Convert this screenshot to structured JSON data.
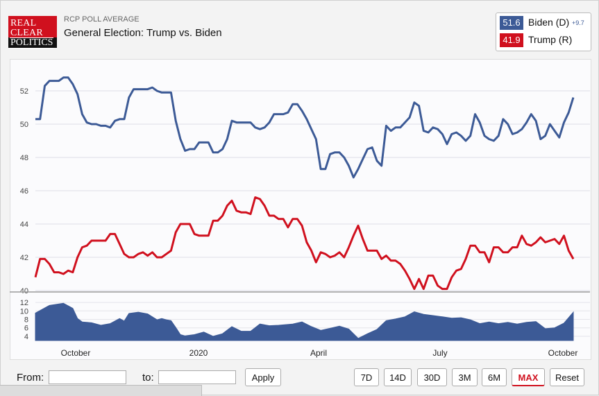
{
  "header": {
    "logo_lines": [
      "REAL",
      "CLEAR",
      "POLITICS"
    ],
    "subtitle": "RCP POLL AVERAGE",
    "title": "General Election: Trump vs. Biden"
  },
  "legend": {
    "biden": {
      "value": "51.6",
      "name": "Biden (D)",
      "spread": "+9.7",
      "color": "#3c5a96"
    },
    "trump": {
      "value": "41.9",
      "name": "Trump (R)",
      "color": "#d0101e"
    }
  },
  "controls": {
    "from_label": "From:",
    "to_label": "to:",
    "apply_label": "Apply",
    "ranges": [
      "7D",
      "14D",
      "30D",
      "3M",
      "6M",
      "MAX",
      "Reset"
    ],
    "active_range": "MAX"
  },
  "chart_data": {
    "type": "line",
    "y_ticks": [
      "52",
      "50",
      "48",
      "46",
      "44",
      "42",
      "40"
    ],
    "ylim": [
      40,
      53
    ],
    "x_ticks": [
      "October",
      "2020",
      "April",
      "July",
      "October"
    ],
    "series": [
      {
        "name": "Biden (D)",
        "color": "#3c5a96",
        "points": [
          [
            0,
            50.3
          ],
          [
            1,
            50.3
          ],
          [
            2,
            52.3
          ],
          [
            3,
            52.6
          ],
          [
            4,
            52.6
          ],
          [
            5,
            52.6
          ],
          [
            6,
            52.8
          ],
          [
            7,
            52.8
          ],
          [
            8,
            52.4
          ],
          [
            9,
            51.8
          ],
          [
            10,
            50.6
          ],
          [
            11,
            50.1
          ],
          [
            12,
            50.0
          ],
          [
            13,
            50.0
          ],
          [
            14,
            49.9
          ],
          [
            15,
            49.9
          ],
          [
            16,
            49.8
          ],
          [
            17,
            50.2
          ],
          [
            18,
            50.3
          ],
          [
            19,
            50.3
          ],
          [
            20,
            51.6
          ],
          [
            21,
            52.1
          ],
          [
            22,
            52.1
          ],
          [
            23,
            52.1
          ],
          [
            24,
            52.1
          ],
          [
            25,
            52.2
          ],
          [
            26,
            52.0
          ],
          [
            27,
            51.9
          ],
          [
            28,
            51.9
          ],
          [
            29,
            51.9
          ],
          [
            30,
            50.2
          ],
          [
            31,
            49.1
          ],
          [
            32,
            48.4
          ],
          [
            33,
            48.5
          ],
          [
            34,
            48.5
          ],
          [
            35,
            48.9
          ],
          [
            36,
            48.9
          ],
          [
            37,
            48.9
          ],
          [
            38,
            48.3
          ],
          [
            39,
            48.3
          ],
          [
            40,
            48.5
          ],
          [
            41,
            49.1
          ],
          [
            42,
            50.2
          ],
          [
            43,
            50.1
          ],
          [
            44,
            50.1
          ],
          [
            45,
            50.1
          ],
          [
            46,
            50.1
          ],
          [
            47,
            49.8
          ],
          [
            48,
            49.7
          ],
          [
            49,
            49.8
          ],
          [
            50,
            50.1
          ],
          [
            51,
            50.6
          ],
          [
            52,
            50.6
          ],
          [
            53,
            50.6
          ],
          [
            54,
            50.7
          ],
          [
            55,
            51.2
          ],
          [
            56,
            51.2
          ],
          [
            57,
            50.8
          ],
          [
            58,
            50.3
          ],
          [
            59,
            49.7
          ],
          [
            60,
            49.1
          ],
          [
            61,
            47.3
          ],
          [
            62,
            47.3
          ],
          [
            63,
            48.2
          ],
          [
            64,
            48.3
          ],
          [
            65,
            48.3
          ],
          [
            66,
            48.0
          ],
          [
            67,
            47.5
          ],
          [
            68,
            46.8
          ],
          [
            69,
            47.3
          ],
          [
            70,
            47.9
          ],
          [
            71,
            48.5
          ],
          [
            72,
            48.6
          ],
          [
            73,
            47.8
          ],
          [
            74,
            47.5
          ],
          [
            75,
            49.9
          ],
          [
            76,
            49.6
          ],
          [
            77,
            49.8
          ],
          [
            78,
            49.8
          ],
          [
            79,
            50.1
          ],
          [
            80,
            50.4
          ],
          [
            81,
            51.3
          ],
          [
            82,
            51.1
          ],
          [
            83,
            49.6
          ],
          [
            84,
            49.5
          ],
          [
            85,
            49.8
          ],
          [
            86,
            49.7
          ],
          [
            87,
            49.4
          ],
          [
            88,
            48.8
          ],
          [
            89,
            49.4
          ],
          [
            90,
            49.5
          ],
          [
            91,
            49.3
          ],
          [
            92,
            49.0
          ],
          [
            93,
            49.3
          ],
          [
            94,
            50.6
          ],
          [
            95,
            50.1
          ],
          [
            96,
            49.3
          ],
          [
            97,
            49.1
          ],
          [
            98,
            49.0
          ],
          [
            99,
            49.3
          ],
          [
            100,
            50.3
          ],
          [
            101,
            50.0
          ],
          [
            102,
            49.4
          ],
          [
            103,
            49.5
          ],
          [
            104,
            49.7
          ],
          [
            105,
            50.1
          ],
          [
            106,
            50.6
          ],
          [
            107,
            50.2
          ],
          [
            108,
            49.1
          ],
          [
            109,
            49.3
          ],
          [
            110,
            50.0
          ],
          [
            111,
            49.6
          ],
          [
            112,
            49.2
          ],
          [
            113,
            50.1
          ],
          [
            114,
            50.7
          ],
          [
            115,
            51.6
          ]
        ]
      },
      {
        "name": "Trump (R)",
        "color": "#d0101e",
        "points": [
          [
            0,
            40.8
          ],
          [
            1,
            41.9
          ],
          [
            2,
            41.9
          ],
          [
            3,
            41.6
          ],
          [
            4,
            41.1
          ],
          [
            5,
            41.1
          ],
          [
            6,
            41.0
          ],
          [
            7,
            41.2
          ],
          [
            8,
            41.1
          ],
          [
            9,
            42.0
          ],
          [
            10,
            42.6
          ],
          [
            11,
            42.7
          ],
          [
            12,
            43.0
          ],
          [
            13,
            43.0
          ],
          [
            14,
            43.0
          ],
          [
            15,
            43.0
          ],
          [
            16,
            43.4
          ],
          [
            17,
            43.4
          ],
          [
            18,
            42.8
          ],
          [
            19,
            42.2
          ],
          [
            20,
            42.0
          ],
          [
            21,
            42.0
          ],
          [
            22,
            42.2
          ],
          [
            23,
            42.3
          ],
          [
            24,
            42.1
          ],
          [
            25,
            42.3
          ],
          [
            26,
            42.0
          ],
          [
            27,
            42.0
          ],
          [
            28,
            42.2
          ],
          [
            29,
            42.4
          ],
          [
            30,
            43.5
          ],
          [
            31,
            44.0
          ],
          [
            32,
            44.0
          ],
          [
            33,
            44.0
          ],
          [
            34,
            43.4
          ],
          [
            35,
            43.3
          ],
          [
            36,
            43.3
          ],
          [
            37,
            43.3
          ],
          [
            38,
            44.2
          ],
          [
            39,
            44.2
          ],
          [
            40,
            44.5
          ],
          [
            41,
            45.1
          ],
          [
            42,
            45.4
          ],
          [
            43,
            44.8
          ],
          [
            44,
            44.7
          ],
          [
            45,
            44.7
          ],
          [
            46,
            44.6
          ],
          [
            47,
            45.6
          ],
          [
            48,
            45.5
          ],
          [
            49,
            45.1
          ],
          [
            50,
            44.5
          ],
          [
            51,
            44.5
          ],
          [
            52,
            44.3
          ],
          [
            53,
            44.3
          ],
          [
            54,
            43.8
          ],
          [
            55,
            44.3
          ],
          [
            56,
            44.3
          ],
          [
            57,
            43.9
          ],
          [
            58,
            42.9
          ],
          [
            59,
            42.4
          ],
          [
            60,
            41.7
          ],
          [
            61,
            42.3
          ],
          [
            62,
            42.2
          ],
          [
            63,
            42.0
          ],
          [
            64,
            42.1
          ],
          [
            65,
            42.3
          ],
          [
            66,
            42.0
          ],
          [
            67,
            42.6
          ],
          [
            68,
            43.3
          ],
          [
            69,
            43.9
          ],
          [
            70,
            43.1
          ],
          [
            71,
            42.4
          ],
          [
            72,
            42.4
          ],
          [
            73,
            42.4
          ],
          [
            74,
            41.9
          ],
          [
            75,
            42.1
          ],
          [
            76,
            41.8
          ],
          [
            77,
            41.8
          ],
          [
            78,
            41.6
          ],
          [
            79,
            41.2
          ],
          [
            80,
            40.7
          ],
          [
            81,
            40.1
          ],
          [
            82,
            40.7
          ],
          [
            83,
            40.1
          ],
          [
            84,
            40.9
          ],
          [
            85,
            40.9
          ],
          [
            86,
            40.3
          ],
          [
            87,
            40.1
          ],
          [
            88,
            40.1
          ],
          [
            89,
            40.8
          ],
          [
            90,
            41.2
          ],
          [
            91,
            41.3
          ],
          [
            92,
            41.9
          ],
          [
            93,
            42.7
          ],
          [
            94,
            42.7
          ],
          [
            95,
            42.3
          ],
          [
            96,
            42.3
          ],
          [
            97,
            41.7
          ],
          [
            98,
            42.6
          ],
          [
            99,
            42.6
          ],
          [
            100,
            42.3
          ],
          [
            101,
            42.3
          ],
          [
            102,
            42.6
          ],
          [
            103,
            42.6
          ],
          [
            104,
            43.3
          ],
          [
            105,
            42.8
          ],
          [
            106,
            42.7
          ],
          [
            107,
            42.9
          ],
          [
            108,
            43.2
          ],
          [
            109,
            42.9
          ],
          [
            110,
            43.0
          ],
          [
            111,
            43.1
          ],
          [
            112,
            42.8
          ],
          [
            113,
            43.3
          ],
          [
            114,
            42.4
          ],
          [
            115,
            41.9
          ]
        ]
      }
    ],
    "navigator": {
      "y_ticks": [
        "12",
        "10",
        "8",
        "6",
        "4"
      ],
      "ylim": [
        3,
        13
      ],
      "color": "#3c5a96",
      "points": [
        [
          0,
          9.5
        ],
        [
          3,
          11.3
        ],
        [
          6,
          11.8
        ],
        [
          8,
          10.6
        ],
        [
          9,
          8.2
        ],
        [
          10,
          7.4
        ],
        [
          12,
          7.2
        ],
        [
          14,
          6.6
        ],
        [
          16,
          7.0
        ],
        [
          18,
          8.2
        ],
        [
          19,
          7.6
        ],
        [
          20,
          9.4
        ],
        [
          22,
          9.7
        ],
        [
          24,
          9.3
        ],
        [
          26,
          7.9
        ],
        [
          27,
          8.2
        ],
        [
          28,
          7.9
        ],
        [
          29,
          7.7
        ],
        [
          30,
          6.1
        ],
        [
          31,
          4.4
        ],
        [
          32,
          4.1
        ],
        [
          34,
          4.4
        ],
        [
          36,
          5.0
        ],
        [
          38,
          4.0
        ],
        [
          40,
          4.6
        ],
        [
          42,
          6.3
        ],
        [
          44,
          5.2
        ],
        [
          46,
          5.2
        ],
        [
          48,
          6.9
        ],
        [
          50,
          6.5
        ],
        [
          52,
          6.6
        ],
        [
          55,
          6.9
        ],
        [
          57,
          7.4
        ],
        [
          59,
          6.3
        ],
        [
          61,
          5.4
        ],
        [
          63,
          5.9
        ],
        [
          65,
          6.4
        ],
        [
          67,
          5.7
        ],
        [
          69,
          3.5
        ],
        [
          71,
          4.6
        ],
        [
          73,
          5.6
        ],
        [
          75,
          7.7
        ],
        [
          77,
          8.1
        ],
        [
          79,
          8.6
        ],
        [
          81,
          9.8
        ],
        [
          83,
          9.2
        ],
        [
          85,
          8.9
        ],
        [
          87,
          8.6
        ],
        [
          89,
          8.3
        ],
        [
          91,
          8.4
        ],
        [
          93,
          7.9
        ],
        [
          95,
          7.0
        ],
        [
          97,
          7.4
        ],
        [
          99,
          7.0
        ],
        [
          101,
          7.3
        ],
        [
          103,
          6.9
        ],
        [
          105,
          7.3
        ],
        [
          107,
          7.5
        ],
        [
          109,
          5.8
        ],
        [
          111,
          6.0
        ],
        [
          113,
          7.1
        ],
        [
          115,
          9.7
        ]
      ]
    }
  }
}
